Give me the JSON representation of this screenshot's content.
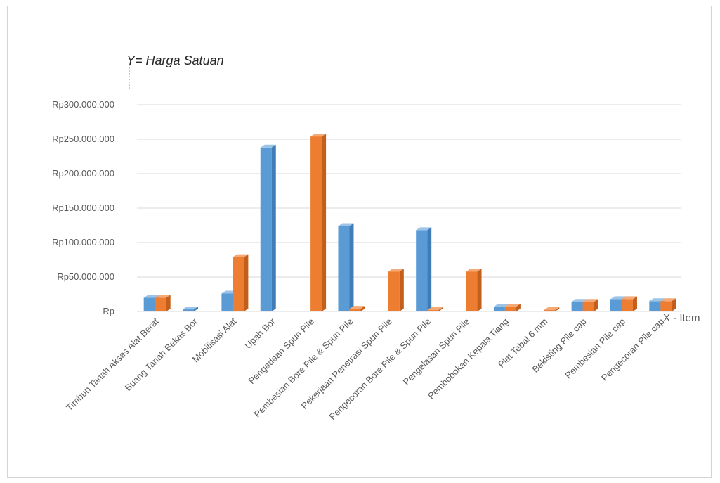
{
  "chart_data": {
    "type": "bar",
    "title": "",
    "ylabel": "Y= Harga Satuan",
    "xlabel": "X - Item",
    "ylim": [
      0,
      300000000
    ],
    "y_ticks": [
      {
        "value": 0,
        "label": "Rp"
      },
      {
        "value": 50000000,
        "label": "Rp50.000.000"
      },
      {
        "value": 100000000,
        "label": "Rp100.000.000"
      },
      {
        "value": 150000000,
        "label": "Rp150.000.000"
      },
      {
        "value": 200000000,
        "label": "Rp200.000.000"
      },
      {
        "value": 250000000,
        "label": "Rp250.000.000"
      },
      {
        "value": 300000000,
        "label": "Rp300.000.000"
      }
    ],
    "categories": [
      "Timbun Tanah Akses Alat Berat",
      "Buang Tanah Bekas Bor",
      "Mobilisasi Alat",
      "Upah Bor",
      "Pengadaan Spun Pile",
      "Pembesian Bore Pile & Spun Pile",
      "Pekerjaan Penetrasi Spun Pile",
      "Pengecoran Bore Pile & Spun Pile",
      "Pengelasan Spun Pile",
      "Pembobokan Kepala Tiang",
      "Plat Tebal 6 mm",
      "Bekisting Pile cap",
      "Pembesian Pile cap",
      "Pengecoran Pile cap"
    ],
    "series": [
      {
        "color": "#5b9bd5",
        "values": [
          20000000,
          3000000,
          26000000,
          238000000,
          0,
          124000000,
          0,
          118000000,
          0,
          7000000,
          0,
          14000000,
          18000000,
          15000000
        ]
      },
      {
        "color": "#ed7d31",
        "values": [
          20000000,
          0,
          79000000,
          0,
          254000000,
          4000000,
          58000000,
          2000000,
          58000000,
          7000000,
          2000000,
          14000000,
          18000000,
          15000000
        ]
      }
    ],
    "grid": true,
    "legend": "none"
  }
}
